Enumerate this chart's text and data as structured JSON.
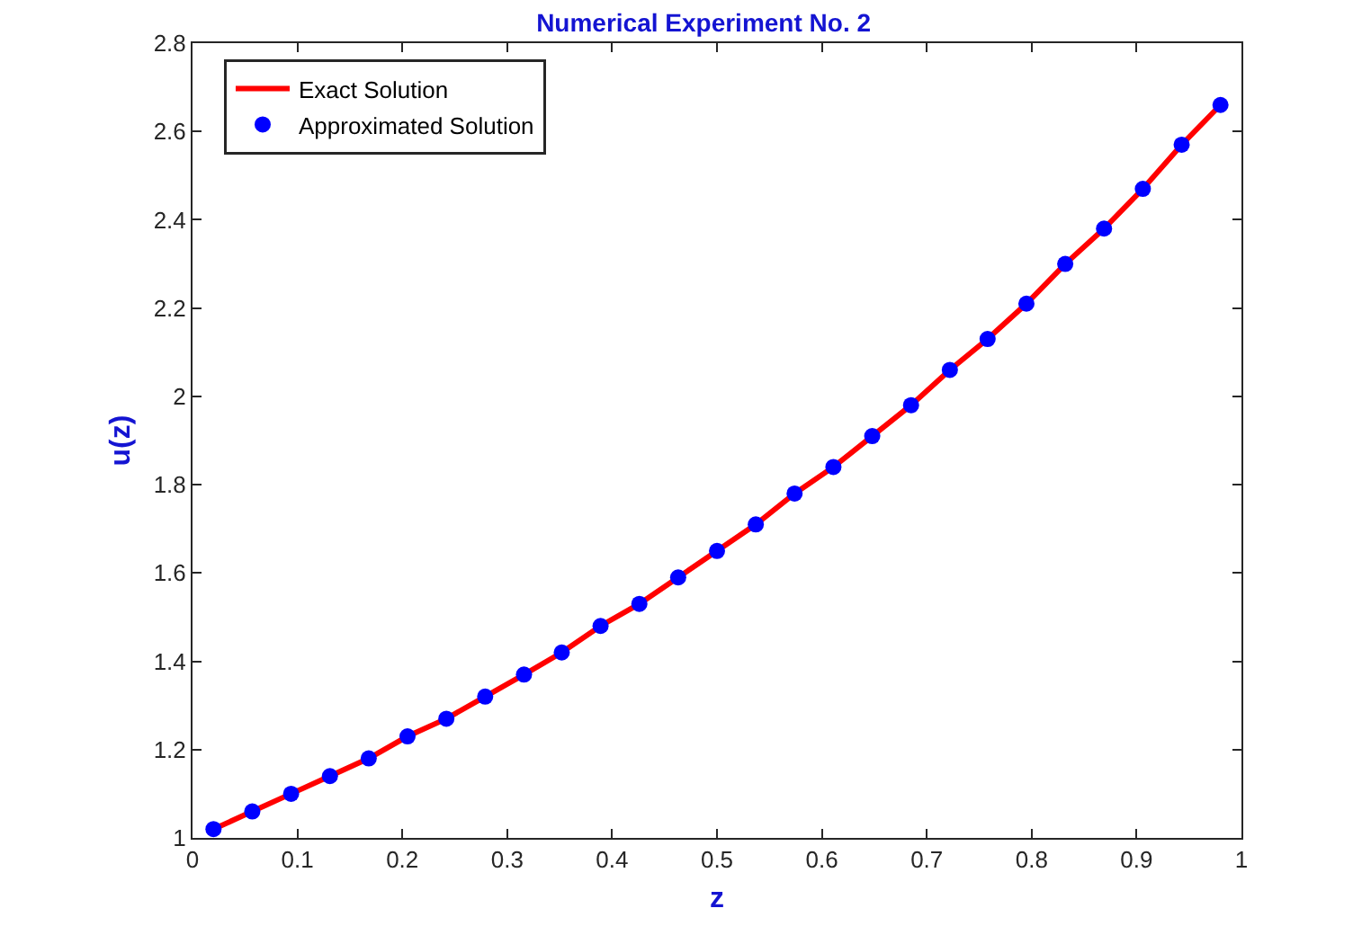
{
  "chart_data": {
    "type": "line",
    "title": "Numerical Experiment No. 2",
    "xlabel": "z",
    "ylabel": "u(z)",
    "x": [
      0.02,
      0.057,
      0.094,
      0.131,
      0.168,
      0.205,
      0.242,
      0.279,
      0.316,
      0.352,
      0.389,
      0.426,
      0.463,
      0.5,
      0.537,
      0.574,
      0.611,
      0.648,
      0.685,
      0.722,
      0.758,
      0.795,
      0.832,
      0.869,
      0.906,
      0.943,
      0.98
    ],
    "series": [
      {
        "name": "Exact Solution",
        "color": "#ff0000",
        "marker": "none",
        "line_style": "solid",
        "values": [
          1.02,
          1.06,
          1.1,
          1.14,
          1.18,
          1.23,
          1.27,
          1.32,
          1.37,
          1.42,
          1.48,
          1.53,
          1.59,
          1.65,
          1.71,
          1.78,
          1.84,
          1.91,
          1.98,
          2.06,
          2.13,
          2.21,
          2.3,
          2.38,
          2.47,
          2.57,
          2.66
        ]
      },
      {
        "name": "Approximated Solution",
        "type": "scatter",
        "color": "#0000ff",
        "marker": "circle",
        "values": [
          1.02,
          1.06,
          1.1,
          1.14,
          1.18,
          1.23,
          1.27,
          1.32,
          1.37,
          1.42,
          1.48,
          1.53,
          1.59,
          1.65,
          1.71,
          1.78,
          1.84,
          1.91,
          1.98,
          2.06,
          2.13,
          2.21,
          2.3,
          2.38,
          2.47,
          2.57,
          2.66
        ]
      }
    ],
    "xlim": [
      0,
      1
    ],
    "xticks": [
      0,
      0.1,
      0.2,
      0.3,
      0.4,
      0.5,
      0.6,
      0.7,
      0.8,
      0.9,
      1
    ],
    "ylim": [
      1,
      2.8
    ],
    "yticks": [
      1,
      1.2,
      1.4,
      1.6,
      1.8,
      2,
      2.2,
      2.4,
      2.6,
      2.8
    ],
    "grid": false,
    "legend": "top left"
  }
}
